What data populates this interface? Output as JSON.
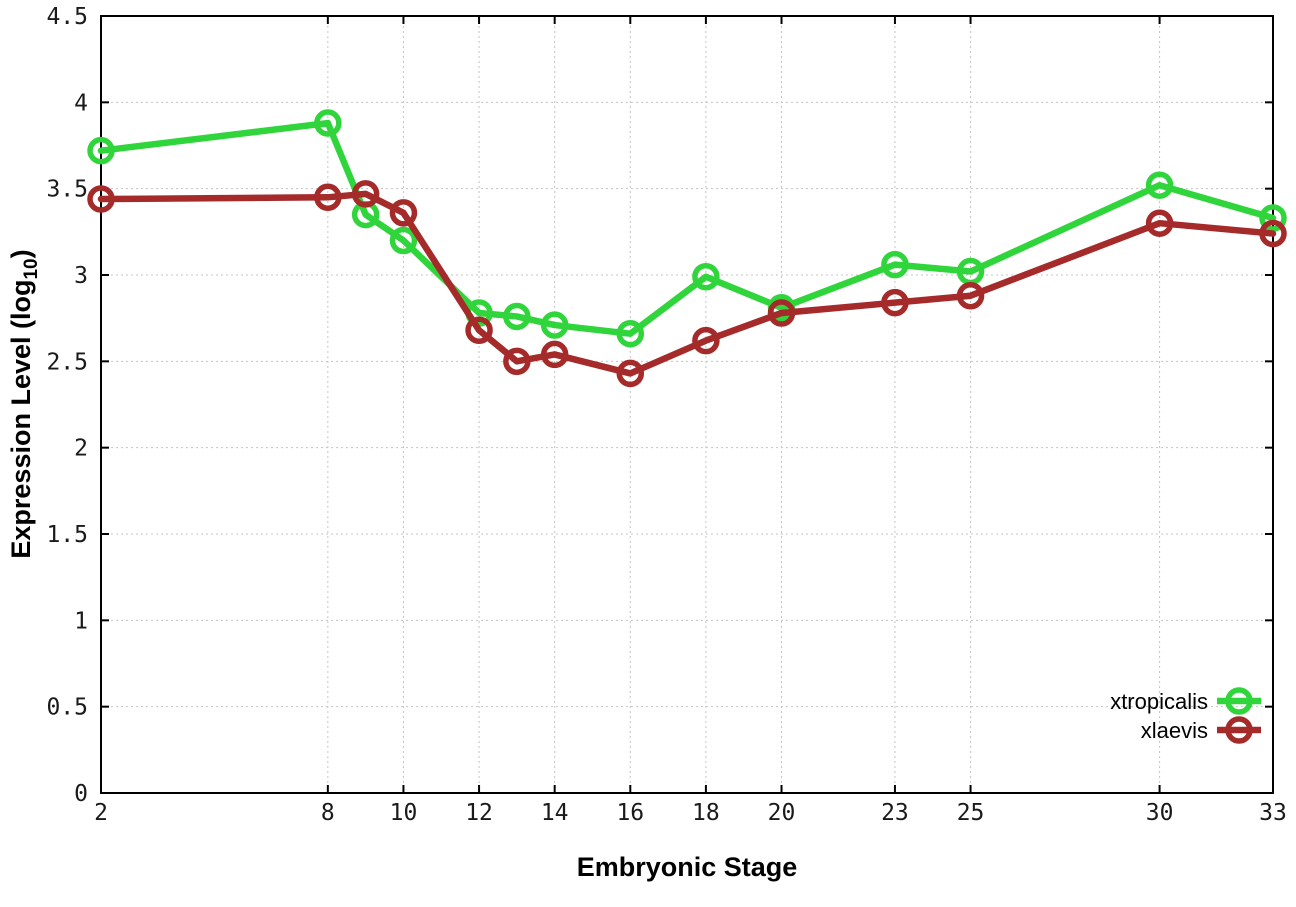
{
  "figure": {
    "xlabel": "Embryonic Stage",
    "ylabel_prefix": "Expression Level (log",
    "ylabel_subscript": "10",
    "ylabel_suffix": ")"
  },
  "chart_data": {
    "type": "line",
    "title": "",
    "xlabel": "Embryonic Stage",
    "ylabel": "Expression Level (log10)",
    "x": [
      2,
      8,
      9,
      10,
      12,
      13,
      14,
      16,
      18,
      20,
      23,
      25,
      30,
      33
    ],
    "series": [
      {
        "name": "xtropicalis",
        "color": "#30d53c",
        "marker": "open-circle",
        "values": [
          3.72,
          3.88,
          3.35,
          3.2,
          2.78,
          2.76,
          2.71,
          2.66,
          2.99,
          2.81,
          3.06,
          3.02,
          3.52,
          3.33
        ]
      },
      {
        "name": "xlaevis",
        "color": "#a52a2a",
        "marker": "open-circle",
        "values": [
          3.44,
          3.45,
          3.47,
          3.36,
          2.68,
          2.5,
          2.54,
          2.43,
          2.62,
          2.78,
          2.84,
          2.88,
          3.3,
          3.24
        ]
      }
    ],
    "x_tick_labels": [
      "2",
      "8",
      "10",
      "12",
      "14",
      "16",
      "18",
      "20",
      "23",
      "25",
      "30",
      "33"
    ],
    "x_tick_values": [
      2,
      8,
      10,
      12,
      14,
      16,
      18,
      20,
      23,
      25,
      30,
      33
    ],
    "y_ticks": [
      0,
      0.5,
      1,
      1.5,
      2,
      2.5,
      3,
      3.5,
      4,
      4.5
    ],
    "xlim": [
      2,
      33
    ],
    "ylim": [
      0,
      4.5
    ],
    "grid": true,
    "grid_style": "dotted",
    "legend_position": "bottom-right",
    "legend_order": [
      "xtropicalis",
      "xlaevis"
    ]
  },
  "style": {
    "grid_color": "#c4c4c4",
    "border_color": "#000000",
    "background": "#ffffff"
  }
}
